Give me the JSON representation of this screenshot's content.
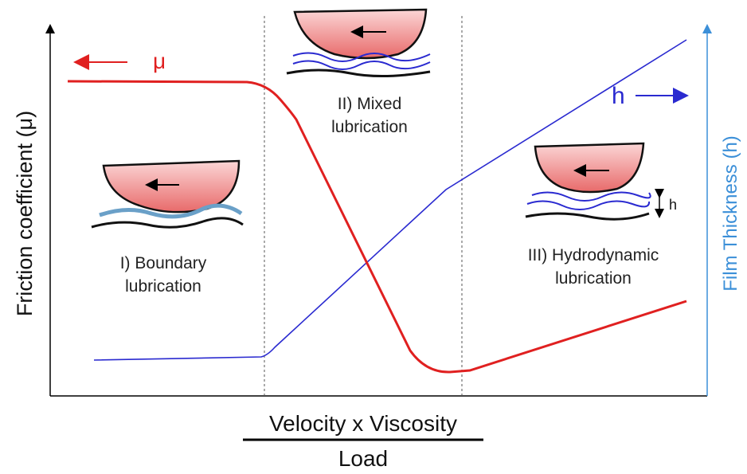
{
  "axes": {
    "y_label": "Friction coefficient (μ)",
    "y2_label": "Film Thickness (h)",
    "x_label_numerator": "Velocity x Viscosity",
    "x_label_denominator": "Load"
  },
  "curves": {
    "friction": {
      "label": "μ"
    },
    "film_thickness": {
      "label": "h"
    }
  },
  "regimes": [
    {
      "label_lines": [
        "I) Boundary",
        "lubrication"
      ]
    },
    {
      "label_lines": [
        "II) Mixed",
        "lubrication"
      ]
    },
    {
      "label_lines": [
        "III) Hydrodynamic",
        "lubrication"
      ]
    }
  ],
  "inset_label": "h"
}
